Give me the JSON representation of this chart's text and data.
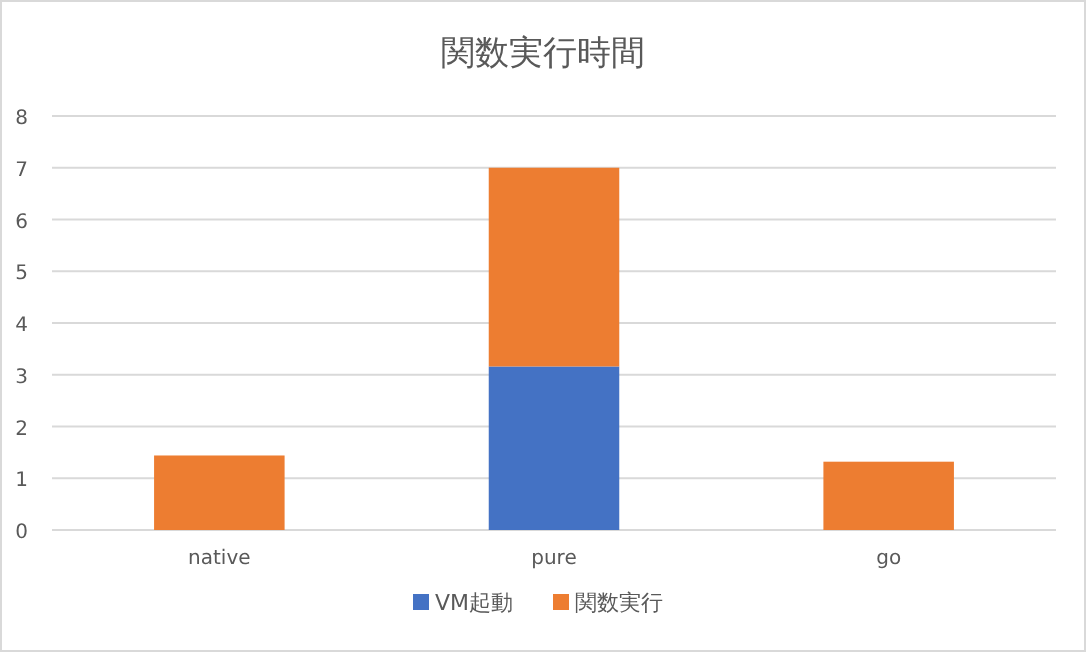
{
  "chart_data": {
    "type": "bar",
    "title": "関数実行時間",
    "stacked": true,
    "categories": [
      "native",
      "pure",
      "go"
    ],
    "series": [
      {
        "name": "VM起動",
        "color": "#4472c4",
        "values": [
          0,
          3.16,
          0
        ]
      },
      {
        "name": "関数実行",
        "color": "#ed7d31",
        "values": [
          1.44,
          3.84,
          1.32
        ]
      }
    ],
    "ylim": [
      0,
      8
    ],
    "yticks": [
      0,
      1,
      2,
      3,
      4,
      5,
      6,
      7,
      8
    ],
    "grid": "y",
    "legend": "bottom"
  }
}
